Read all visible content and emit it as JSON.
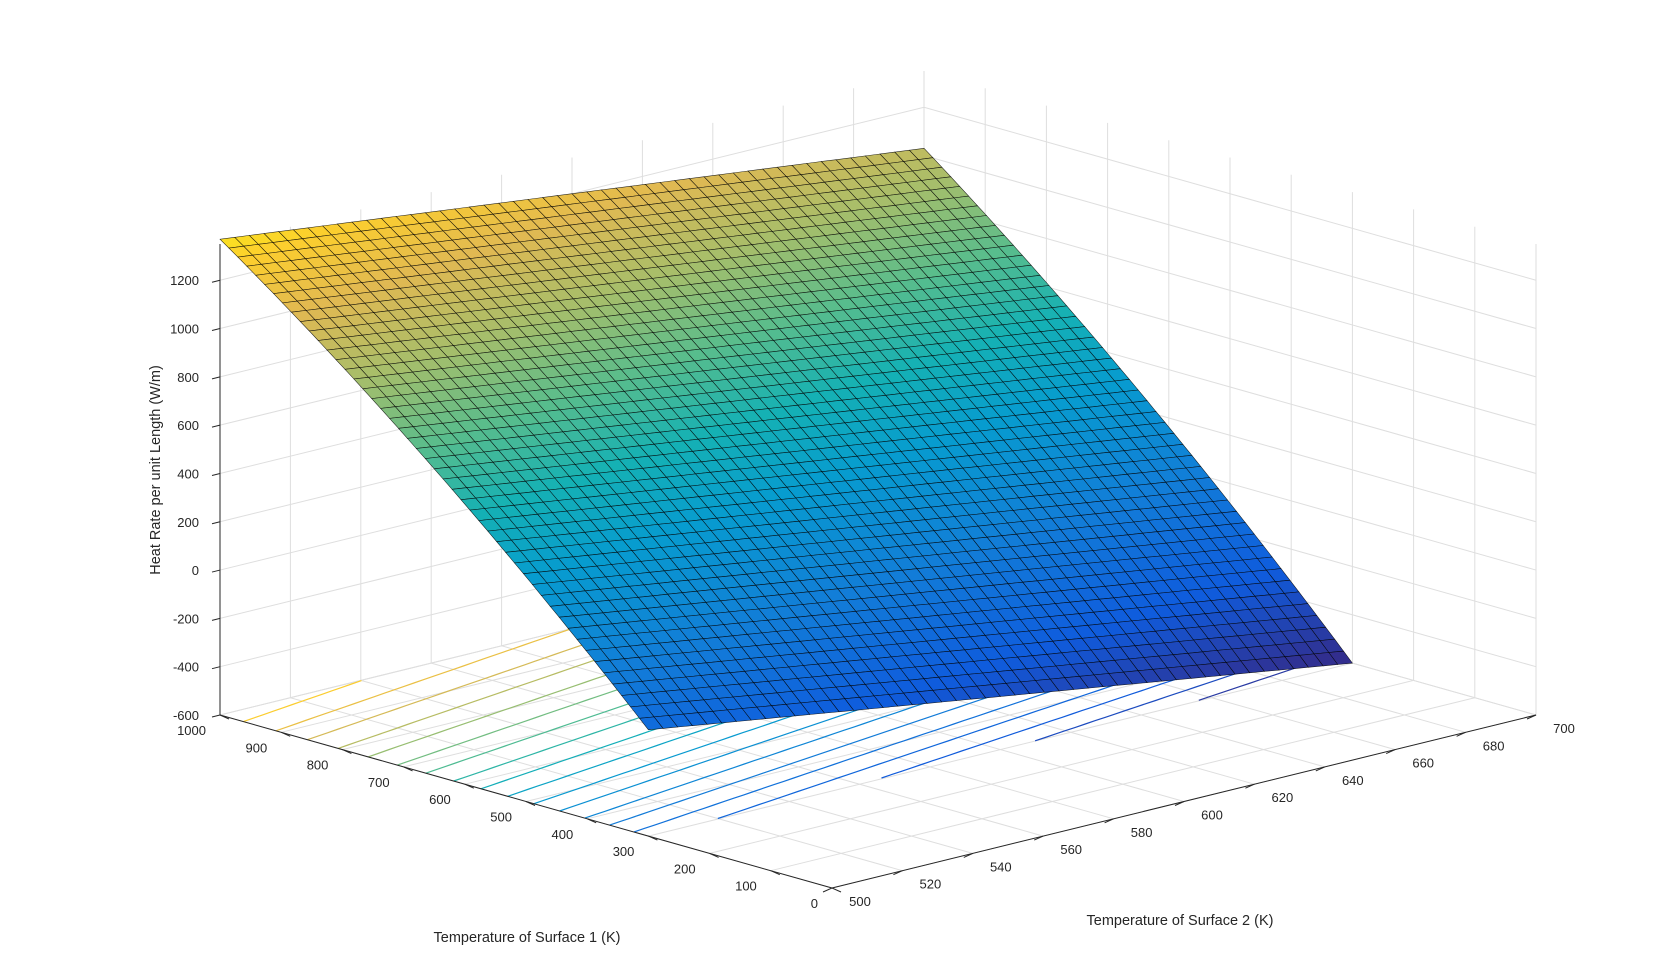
{
  "chart_data": {
    "type": "surface+contour",
    "title": "",
    "xlabel": "Temperature of Surface 1 (K)",
    "ylabel": "Temperature of Surface 2 (K)",
    "zlabel": "Heat Rate per unit Length (W/m)",
    "x_ticks": [
      0,
      100,
      200,
      300,
      400,
      500,
      600,
      700,
      800,
      900,
      1000
    ],
    "y_ticks": [
      500,
      520,
      540,
      560,
      580,
      600,
      620,
      640,
      660,
      680,
      700
    ],
    "z_ticks": [
      -600,
      -400,
      -200,
      0,
      200,
      400,
      600,
      800,
      1000,
      1200
    ],
    "xlim": [
      0,
      1000
    ],
    "ylim": [
      500,
      700
    ],
    "zlim": [
      -600,
      1350
    ],
    "x_range_surface": [
      300,
      1000
    ],
    "y_range_surface": [
      500,
      700
    ],
    "corner_values": [
      {
        "x": 1000,
        "y": 500,
        "z": 1370
      },
      {
        "x": 1000,
        "y": 700,
        "z": 1030
      },
      {
        "x": 300,
        "y": 500,
        "z": -160
      },
      {
        "x": 300,
        "y": 700,
        "z": -600
      }
    ],
    "colormap": "parula",
    "grid": true
  }
}
